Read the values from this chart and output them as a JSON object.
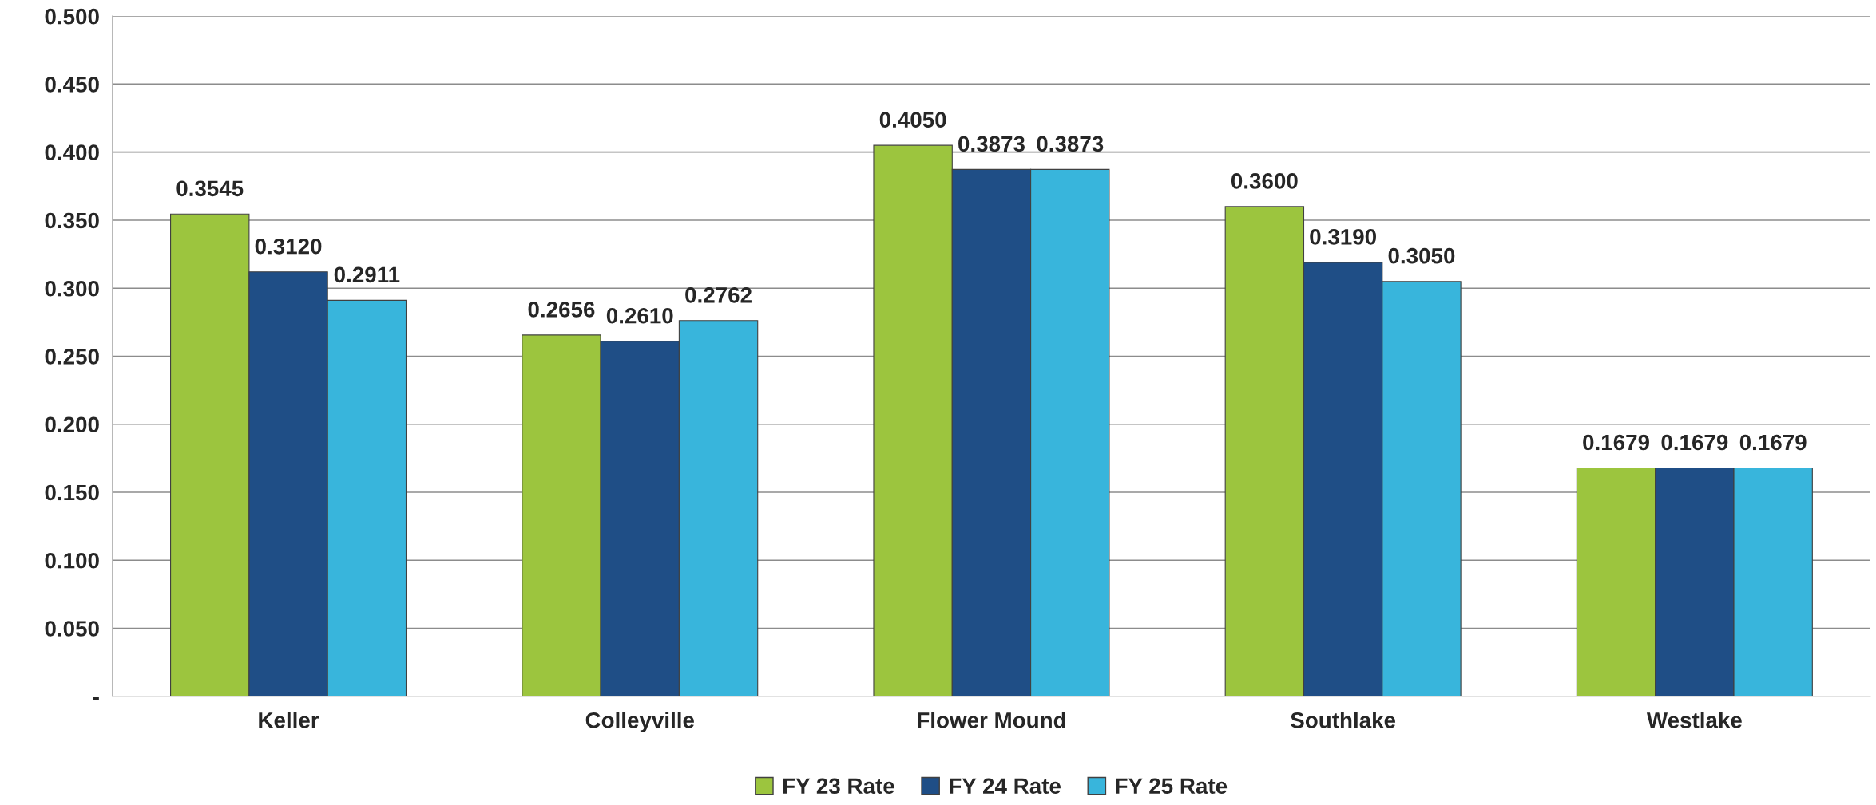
{
  "chart_data": {
    "type": "bar",
    "categories": [
      "Keller",
      "Colleyville",
      "Flower Mound",
      "Southlake",
      "Westlake"
    ],
    "series": [
      {
        "name": "FY 23 Rate",
        "color": "#9cc53e",
        "values": [
          0.3545,
          0.2656,
          0.405,
          0.36,
          0.1679
        ],
        "value_labels": [
          "0.3545",
          "0.2656",
          "0.4050",
          "0.3600",
          "0.1679"
        ]
      },
      {
        "name": "FY 24 Rate",
        "color": "#1f4e86",
        "values": [
          0.312,
          0.261,
          0.3873,
          0.319,
          0.1679
        ],
        "value_labels": [
          "0.3120",
          "0.2610",
          "0.3873",
          "0.3190",
          "0.1679"
        ]
      },
      {
        "name": "FY 25 Rate",
        "color": "#38b5dc",
        "values": [
          0.2911,
          0.2762,
          0.3873,
          0.305,
          0.1679
        ],
        "value_labels": [
          "0.2911",
          "0.2762",
          "0.3873",
          "0.3050",
          "0.1679"
        ]
      }
    ],
    "ylim": [
      0,
      0.5
    ],
    "yticks": [
      {
        "value": 0,
        "label": "-"
      },
      {
        "value": 0.05,
        "label": "0.050"
      },
      {
        "value": 0.1,
        "label": "0.100"
      },
      {
        "value": 0.15,
        "label": "0.150"
      },
      {
        "value": 0.2,
        "label": "0.200"
      },
      {
        "value": 0.25,
        "label": "0.250"
      },
      {
        "value": 0.3,
        "label": "0.300"
      },
      {
        "value": 0.35,
        "label": "0.350"
      },
      {
        "value": 0.4,
        "label": "0.400"
      },
      {
        "value": 0.45,
        "label": "0.450"
      },
      {
        "value": 0.5,
        "label": "0.500"
      }
    ],
    "grid": "y",
    "legend": "bottom"
  }
}
